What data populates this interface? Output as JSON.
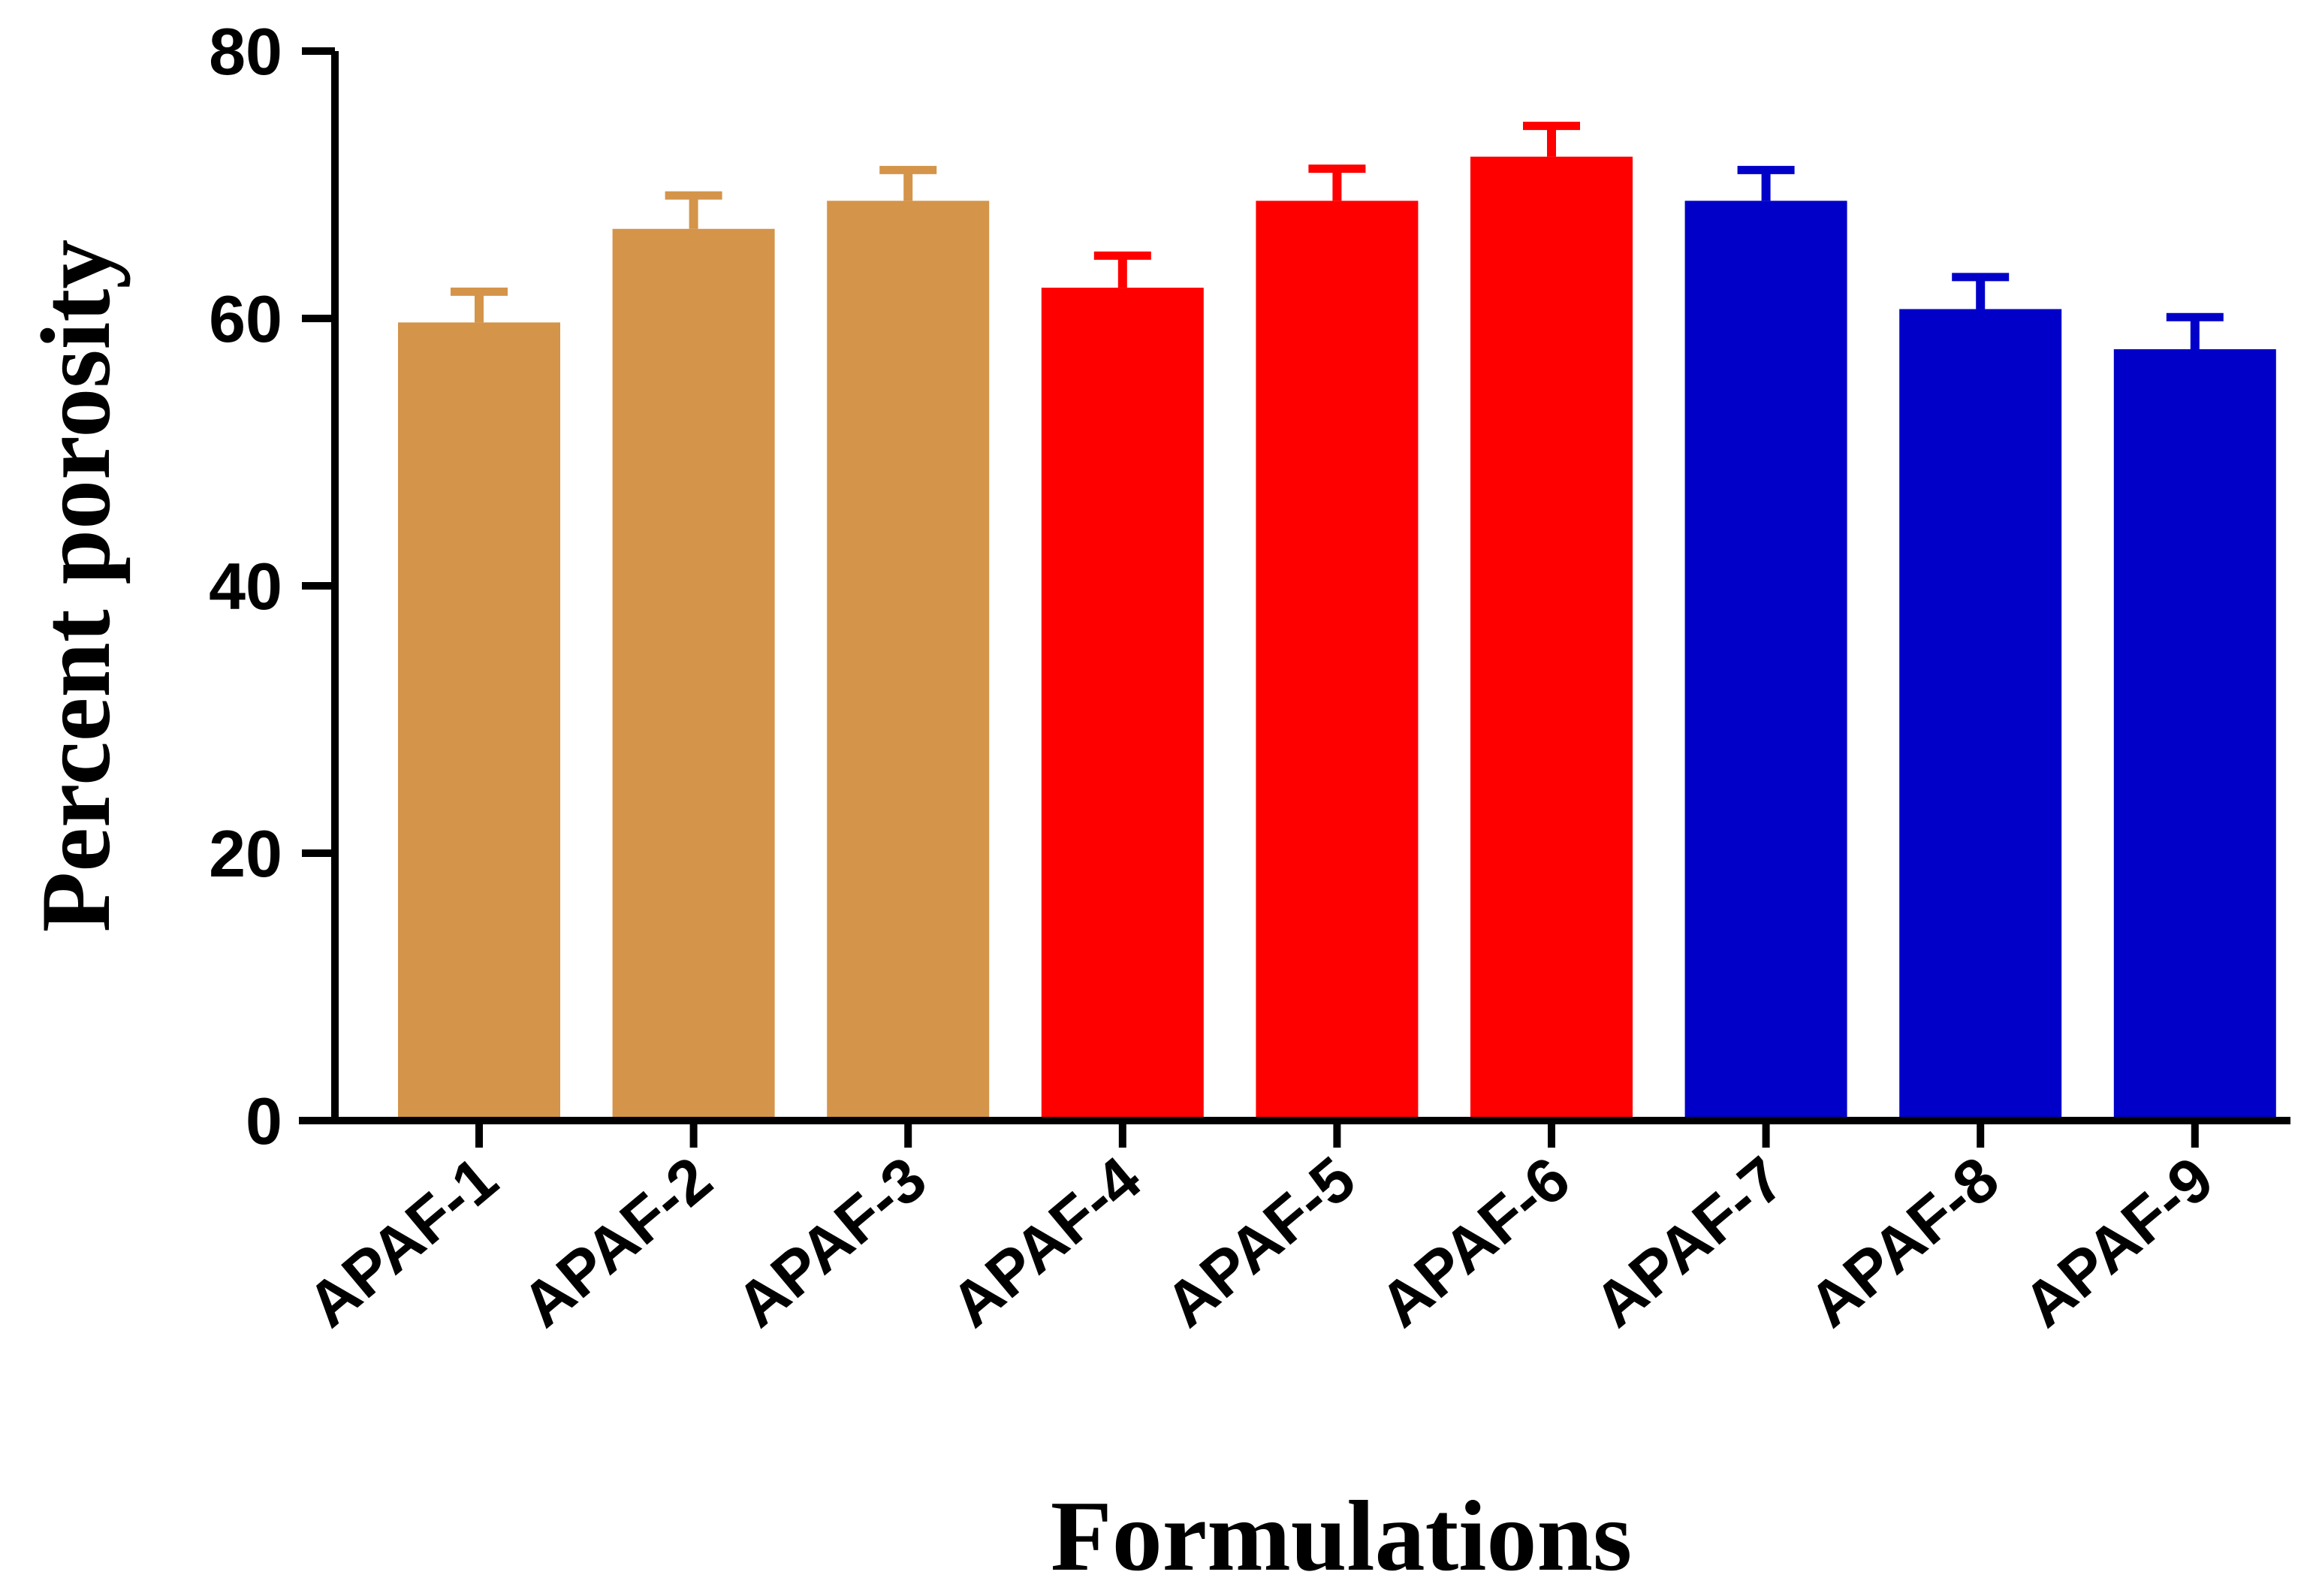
{
  "chart_data": {
    "type": "bar",
    "xlabel": "Formulations",
    "ylabel": "Percent porosity",
    "ylim": [
      0,
      80
    ],
    "yticks": [
      0,
      20,
      40,
      60,
      80
    ],
    "grid": false,
    "legend": "none",
    "categories": [
      "APAF-1",
      "APAF-2",
      "APAF-3",
      "APAF-4",
      "APAF-5",
      "APAF-6",
      "APAF-7",
      "APAF-8",
      "APAF-9"
    ],
    "values": [
      59.7,
      66.7,
      68.8,
      62.3,
      68.8,
      72.1,
      68.8,
      60.7,
      57.7
    ],
    "errors": [
      2.3,
      2.5,
      2.3,
      2.4,
      2.4,
      2.3,
      2.3,
      2.4,
      2.4
    ],
    "bar_colors": [
      "#D4944A",
      "#D4944A",
      "#D4944A",
      "#FF0000",
      "#FF0000",
      "#FF0000",
      "#0000C8",
      "#0000C8",
      "#0000C8"
    ]
  }
}
